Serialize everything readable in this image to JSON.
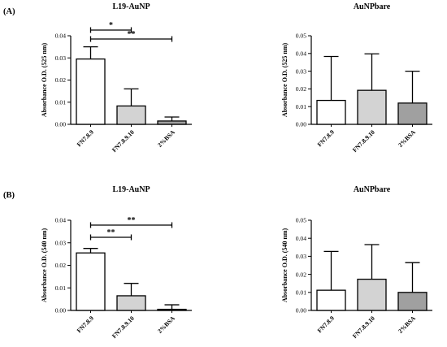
{
  "panel_labels": [
    "(A)",
    "(B)"
  ],
  "chart_data": [
    {
      "type": "bar",
      "title": "L19-AuNP",
      "ylabel": "Absorbance O.D. (525 nm)",
      "categories": [
        "FN7.8.9",
        "FN7.8.9.10",
        "2%BSA"
      ],
      "values": [
        0.0295,
        0.0083,
        0.0015
      ],
      "errors": [
        0.0055,
        0.0077,
        0.0018
      ],
      "bar_colors": [
        "#ffffff",
        "#d3d3d3",
        "#a0a0a0"
      ],
      "ylim": [
        0,
        0.04
      ],
      "yticks": [
        "0.00",
        "0.01",
        "0.02",
        "0.03",
        "0.04"
      ],
      "significance": [
        {
          "from": 0,
          "to": 1,
          "label": "*"
        },
        {
          "from": 0,
          "to": 2,
          "label": "**"
        }
      ]
    },
    {
      "type": "bar",
      "title": "AuNPbare",
      "ylabel": "Absorbance O.D. (525 nm)",
      "categories": [
        "FN7.8.9",
        "FN7.8.9.10",
        "2%BSA"
      ],
      "values": [
        0.0135,
        0.0192,
        0.012
      ],
      "errors": [
        0.0248,
        0.0206,
        0.018
      ],
      "bar_colors": [
        "#ffffff",
        "#d3d3d3",
        "#a0a0a0"
      ],
      "ylim": [
        0,
        0.05
      ],
      "yticks": [
        "0.00",
        "0.01",
        "0.02",
        "0.03",
        "0.04",
        "0.05"
      ],
      "significance": []
    },
    {
      "type": "bar",
      "title": "L19-AuNP",
      "ylabel": "Absorbance O.D. (540 nm)",
      "categories": [
        "FN7.8.9",
        "FN7.8.9.10",
        "2%BSA"
      ],
      "values": [
        0.0255,
        0.0065,
        0.0005
      ],
      "errors": [
        0.002,
        0.0055,
        0.002
      ],
      "bar_colors": [
        "#ffffff",
        "#d3d3d3",
        "#a0a0a0"
      ],
      "ylim": [
        0,
        0.04
      ],
      "yticks": [
        "0.00",
        "0.01",
        "0.02",
        "0.03",
        "0.04"
      ],
      "significance": [
        {
          "from": 0,
          "to": 1,
          "label": "**"
        },
        {
          "from": 0,
          "to": 2,
          "label": "**"
        }
      ]
    },
    {
      "type": "bar",
      "title": "AuNPbare",
      "ylabel": "Absorbance O.D. (540 nm)",
      "categories": [
        "FN7.8.9",
        "FN7.8.9.10",
        "2%BSA"
      ],
      "values": [
        0.0112,
        0.0173,
        0.01
      ],
      "errors": [
        0.0215,
        0.0192,
        0.0165
      ],
      "bar_colors": [
        "#ffffff",
        "#d3d3d3",
        "#a0a0a0"
      ],
      "ylim": [
        0,
        0.05
      ],
      "yticks": [
        "0.00",
        "0.01",
        "0.02",
        "0.03",
        "0.04",
        "0.05"
      ],
      "significance": []
    }
  ]
}
